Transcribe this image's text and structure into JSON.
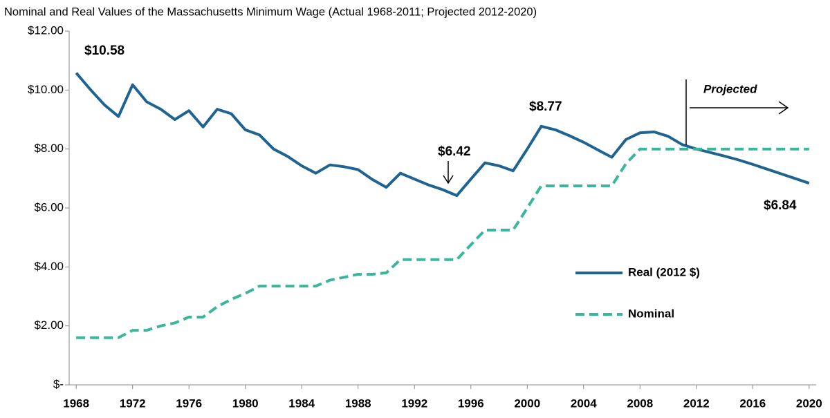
{
  "chart_data": {
    "type": "line",
    "title": "Nominal and Real Values of the Massachusetts Minimum Wage (Actual 1968-2011; Projected 2012-2020)",
    "x": [
      1968,
      1969,
      1970,
      1971,
      1972,
      1973,
      1974,
      1975,
      1976,
      1977,
      1978,
      1979,
      1980,
      1981,
      1982,
      1983,
      1984,
      1985,
      1986,
      1987,
      1988,
      1989,
      1990,
      1991,
      1992,
      1993,
      1994,
      1995,
      1996,
      1997,
      1998,
      1999,
      2000,
      2001,
      2002,
      2003,
      2004,
      2005,
      2006,
      2007,
      2008,
      2009,
      2010,
      2011,
      2012,
      2013,
      2014,
      2015,
      2016,
      2017,
      2018,
      2019,
      2020
    ],
    "series": [
      {
        "name": "Real (2012 $)",
        "color": "#1f6391",
        "dash": "solid",
        "values": [
          10.58,
          10.02,
          9.5,
          9.1,
          10.18,
          9.6,
          9.35,
          9.0,
          9.3,
          8.75,
          9.35,
          9.2,
          8.65,
          8.48,
          8.0,
          7.75,
          7.43,
          7.18,
          7.46,
          7.4,
          7.3,
          6.97,
          6.7,
          7.18,
          6.98,
          6.78,
          6.62,
          6.42,
          6.98,
          7.53,
          7.43,
          7.26,
          8.0,
          8.77,
          8.65,
          8.45,
          8.23,
          7.97,
          7.72,
          8.32,
          8.55,
          8.58,
          8.43,
          8.15,
          8.0,
          7.88,
          7.76,
          7.63,
          7.48,
          7.32,
          7.16,
          7.0,
          6.84
        ]
      },
      {
        "name": "Nominal",
        "color": "#3ab79a",
        "dash": "dashed",
        "values": [
          1.6,
          1.6,
          1.6,
          1.6,
          1.85,
          1.85,
          2.0,
          2.1,
          2.3,
          2.3,
          2.65,
          2.9,
          3.1,
          3.35,
          3.35,
          3.35,
          3.35,
          3.35,
          3.55,
          3.65,
          3.75,
          3.75,
          3.8,
          4.25,
          4.25,
          4.25,
          4.25,
          4.25,
          4.75,
          5.25,
          5.25,
          5.25,
          6.0,
          6.75,
          6.75,
          6.75,
          6.75,
          6.75,
          6.75,
          7.5,
          8.0,
          8.0,
          8.0,
          8.0,
          8.0,
          8.0,
          8.0,
          8.0,
          8.0,
          8.0,
          8.0,
          8.0,
          8.0
        ]
      }
    ],
    "xlim": [
      1967.5,
      2020.5
    ],
    "xticks": [
      1968,
      1972,
      1976,
      1980,
      1984,
      1988,
      1992,
      1996,
      2000,
      2004,
      2008,
      2012,
      2016,
      2020
    ],
    "ylim": [
      0,
      12
    ],
    "yticks": [
      {
        "value": 0,
        "label": "$-"
      },
      {
        "value": 2,
        "label": "$2.00"
      },
      {
        "value": 4,
        "label": "$4.00"
      },
      {
        "value": 6,
        "label": "$6.00"
      },
      {
        "value": 8,
        "label": "$8.00"
      },
      {
        "value": 10,
        "label": "$10.00"
      },
      {
        "value": 12,
        "label": "$12.00"
      }
    ],
    "annotations": [
      "$10.58",
      "$8.77",
      "$6.42",
      "$6.84",
      "Projected"
    ],
    "legend": "right",
    "grid": false
  }
}
